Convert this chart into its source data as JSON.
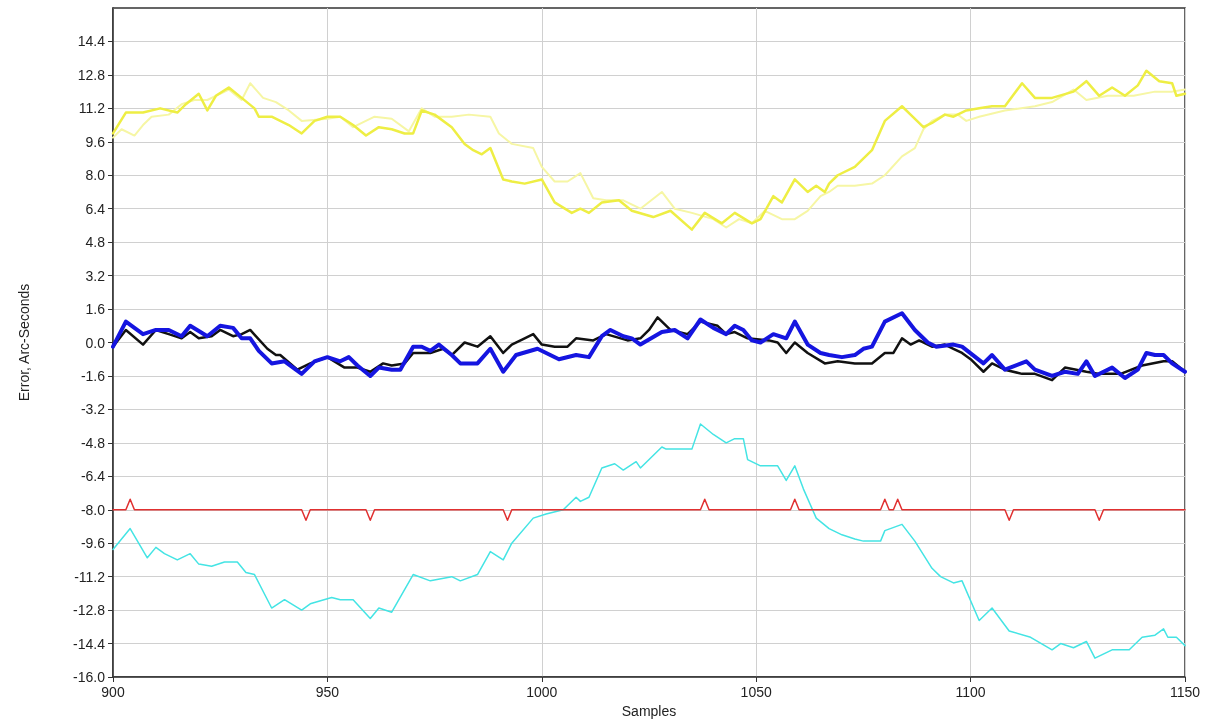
{
  "chart_data": {
    "type": "line",
    "xlabel": "Samples",
    "ylabel": "Error, Arc-Seconds",
    "xlim": [
      900,
      1150
    ],
    "xticks": [
      900,
      950,
      1000,
      1050,
      1100,
      1150
    ],
    "ylim": [
      -16,
      16
    ],
    "yticks": [
      {
        "value": -16,
        "label": "-16.0"
      },
      -14.4,
      -12.8,
      -11.2,
      -9.6,
      {
        "value": -8,
        "label": "-8.0"
      },
      -6.4,
      -4.8,
      -3.2,
      -1.6,
      {
        "value": 0,
        "label": "0.0"
      },
      1.6,
      3.2,
      4.8,
      6.4,
      {
        "value": 8,
        "label": "8.0"
      },
      9.6,
      11.2,
      12.8,
      14.4
    ],
    "grid": true,
    "marker": "none",
    "line_style": "solid",
    "series": [
      {
        "color": "#f6f6a4",
        "x": [
          900,
          902,
          905,
          907,
          909,
          913,
          916,
          919,
          922,
          927,
          930,
          932,
          935,
          938,
          941,
          944,
          950,
          953,
          956,
          961,
          965,
          969,
          972,
          975,
          979,
          983,
          988,
          990,
          993,
          998,
          1000,
          1003,
          1006,
          1009,
          1012,
          1015,
          1019,
          1023,
          1028,
          1031,
          1035,
          1040,
          1043,
          1046,
          1049,
          1052,
          1056,
          1059,
          1062,
          1065,
          1067,
          1069,
          1073,
          1077,
          1080,
          1084,
          1087,
          1089,
          1091,
          1094,
          1097,
          1099,
          1102,
          1108,
          1115,
          1119,
          1124,
          1127,
          1132,
          1138,
          1143,
          1147,
          1150
        ],
        "values": [
          9.8,
          10.2,
          9.9,
          10.4,
          10.8,
          10.9,
          11.4,
          11.6,
          11.6,
          12.1,
          11.6,
          12.4,
          11.7,
          11.5,
          11.1,
          10.6,
          10.7,
          10.8,
          10.3,
          10.8,
          10.7,
          10.1,
          11.2,
          10.8,
          10.8,
          10.9,
          10.8,
          10.0,
          9.5,
          9.3,
          8.4,
          7.7,
          7.7,
          8.1,
          6.9,
          6.8,
          6.8,
          6.4,
          7.2,
          6.4,
          6.2,
          5.9,
          5.5,
          5.9,
          5.7,
          6.3,
          5.9,
          5.9,
          6.3,
          7.0,
          7.2,
          7.5,
          7.5,
          7.6,
          8.0,
          8.9,
          9.3,
          10.2,
          10.6,
          10.9,
          10.9,
          10.6,
          10.8,
          11.1,
          11.3,
          11.5,
          12.1,
          11.6,
          11.8,
          11.8,
          12.0,
          12.0,
          12.1
        ]
      },
      {
        "color": "#eeee44",
        "x": [
          900,
          903,
          907,
          911,
          915,
          917,
          920,
          922,
          924,
          927,
          930,
          933,
          934,
          937,
          941,
          944,
          947,
          950,
          953,
          956,
          959,
          962,
          965,
          968,
          970,
          972,
          975,
          979,
          982,
          984,
          986,
          988,
          991,
          993,
          996,
          1000,
          1003,
          1007,
          1009,
          1011,
          1014,
          1018,
          1021,
          1026,
          1030,
          1035,
          1038,
          1042,
          1045,
          1049,
          1051,
          1054,
          1056,
          1059,
          1062,
          1064,
          1066,
          1067,
          1069,
          1073,
          1077,
          1080,
          1084,
          1086,
          1089,
          1091,
          1094,
          1096,
          1099,
          1102,
          1105,
          1108,
          1112,
          1115,
          1119,
          1124,
          1127,
          1130,
          1133,
          1136,
          1139,
          1141,
          1144,
          1147,
          1148,
          1150
        ],
        "values": [
          10.0,
          11.0,
          11.0,
          11.2,
          11.0,
          11.4,
          11.9,
          11.1,
          11.8,
          12.2,
          11.7,
          11.2,
          10.8,
          10.8,
          10.4,
          10.0,
          10.6,
          10.8,
          10.8,
          10.4,
          9.9,
          10.3,
          10.2,
          10.0,
          10.0,
          11.1,
          10.9,
          10.3,
          9.5,
          9.2,
          9.0,
          9.3,
          7.8,
          7.7,
          7.6,
          7.8,
          6.7,
          6.2,
          6.4,
          6.2,
          6.7,
          6.8,
          6.3,
          6.0,
          6.3,
          5.4,
          6.2,
          5.7,
          6.2,
          5.7,
          5.9,
          7.0,
          6.7,
          7.8,
          7.2,
          7.5,
          7.2,
          7.6,
          8.0,
          8.4,
          9.2,
          10.6,
          11.3,
          10.9,
          10.3,
          10.5,
          10.9,
          10.8,
          11.1,
          11.2,
          11.3,
          11.3,
          12.4,
          11.7,
          11.7,
          12.0,
          12.5,
          11.8,
          12.2,
          11.8,
          12.3,
          13.0,
          12.5,
          12.4,
          11.8,
          11.9
        ]
      },
      {
        "color": "#44e4e4",
        "x": [
          900,
          904,
          908,
          910,
          912,
          915,
          918,
          920,
          923,
          926,
          929,
          931,
          933,
          937,
          940,
          944,
          946,
          951,
          953,
          956,
          960,
          962,
          965,
          970,
          974,
          979,
          981,
          985,
          988,
          991,
          993,
          998,
          1001,
          1005,
          1008,
          1009,
          1011,
          1014,
          1017,
          1019,
          1022,
          1023,
          1028,
          1029,
          1032,
          1035,
          1037,
          1040,
          1043,
          1045,
          1047,
          1048,
          1051,
          1055,
          1057,
          1059,
          1061,
          1064,
          1067,
          1070,
          1073,
          1075,
          1079,
          1080,
          1084,
          1087,
          1091,
          1093,
          1096,
          1098,
          1102,
          1105,
          1109,
          1114,
          1119,
          1121,
          1124,
          1127,
          1129,
          1133,
          1137,
          1140,
          1143,
          1145,
          1146,
          1148,
          1150
        ],
        "values": [
          -9.9,
          -8.9,
          -10.3,
          -9.8,
          -10.1,
          -10.4,
          -10.1,
          -10.6,
          -10.7,
          -10.5,
          -10.5,
          -11.0,
          -11.1,
          -12.7,
          -12.3,
          -12.8,
          -12.5,
          -12.2,
          -12.3,
          -12.3,
          -13.2,
          -12.7,
          -12.9,
          -11.1,
          -11.4,
          -11.2,
          -11.4,
          -11.1,
          -10.0,
          -10.4,
          -9.6,
          -8.4,
          -8.2,
          -8.0,
          -7.4,
          -7.6,
          -7.4,
          -6.0,
          -5.8,
          -6.1,
          -5.7,
          -6.0,
          -5.0,
          -5.1,
          -5.1,
          -5.1,
          -3.9,
          -4.4,
          -4.8,
          -4.6,
          -4.6,
          -5.6,
          -5.9,
          -5.9,
          -6.6,
          -5.9,
          -7.0,
          -8.4,
          -8.9,
          -9.2,
          -9.4,
          -9.5,
          -9.5,
          -9.0,
          -8.7,
          -9.5,
          -10.8,
          -11.2,
          -11.5,
          -11.4,
          -13.3,
          -12.7,
          -13.8,
          -14.1,
          -14.7,
          -14.4,
          -14.6,
          -14.3,
          -15.1,
          -14.7,
          -14.7,
          -14.1,
          -14.0,
          -13.7,
          -14.1,
          -14.1,
          -14.5
        ]
      },
      {
        "color": "#e03030",
        "x": [
          900,
          903,
          904,
          905,
          944,
          945,
          946,
          959,
          960,
          961,
          991,
          992,
          993,
          1037,
          1038,
          1039,
          1058,
          1059,
          1060,
          1079,
          1080,
          1081,
          1082,
          1083,
          1084,
          1085,
          1108,
          1109,
          1110,
          1129,
          1130,
          1131,
          1150
        ],
        "values": [
          -8.0,
          -8.0,
          -7.5,
          -8.0,
          -8.0,
          -8.5,
          -8.0,
          -8.0,
          -8.5,
          -8.0,
          -8.0,
          -8.5,
          -8.0,
          -8.0,
          -7.5,
          -8.0,
          -8.0,
          -7.5,
          -8.0,
          -8.0,
          -7.5,
          -8.0,
          -8.0,
          -7.5,
          -8.0,
          -8.0,
          -8.0,
          -8.5,
          -8.0,
          -8.0,
          -8.5,
          -8.0,
          -8.0
        ]
      },
      {
        "color": "#111111",
        "x": [
          900,
          903,
          907,
          910,
          913,
          916,
          918,
          920,
          923,
          925,
          928,
          930,
          932,
          936,
          938,
          939,
          943,
          946,
          950,
          954,
          957,
          960,
          963,
          965,
          968,
          970,
          974,
          977,
          979,
          982,
          985,
          988,
          991,
          993,
          996,
          998,
          1000,
          1003,
          1006,
          1008,
          1012,
          1015,
          1020,
          1023,
          1025,
          1027,
          1030,
          1034,
          1037,
          1039,
          1041,
          1043,
          1045,
          1048,
          1053,
          1055,
          1057,
          1059,
          1062,
          1066,
          1069,
          1073,
          1077,
          1080,
          1082,
          1084,
          1086,
          1088,
          1091,
          1094,
          1096,
          1098,
          1100,
          1103,
          1105,
          1108,
          1112,
          1115,
          1119,
          1122,
          1127,
          1130,
          1135,
          1140,
          1145,
          1147,
          1150
        ],
        "values": [
          -0.2,
          0.6,
          -0.1,
          0.6,
          0.4,
          0.2,
          0.5,
          0.2,
          0.3,
          0.6,
          0.3,
          0.4,
          0.6,
          -0.3,
          -0.6,
          -0.6,
          -1.3,
          -1.0,
          -0.7,
          -1.2,
          -1.2,
          -1.4,
          -1.0,
          -1.1,
          -1.0,
          -0.5,
          -0.5,
          -0.3,
          -0.6,
          0.0,
          -0.2,
          0.3,
          -0.5,
          -0.1,
          0.2,
          0.4,
          -0.1,
          -0.2,
          -0.2,
          0.2,
          0.1,
          0.4,
          0.1,
          0.2,
          0.6,
          1.2,
          0.6,
          0.4,
          1.0,
          0.9,
          0.8,
          0.4,
          0.5,
          0.2,
          0.1,
          0.0,
          -0.5,
          0.0,
          -0.5,
          -1.0,
          -0.9,
          -1.0,
          -1.0,
          -0.5,
          -0.5,
          0.2,
          -0.1,
          0.1,
          -0.2,
          -0.1,
          -0.3,
          -0.5,
          -0.8,
          -1.4,
          -1.0,
          -1.3,
          -1.5,
          -1.5,
          -1.8,
          -1.2,
          -1.4,
          -1.5,
          -1.5,
          -1.1,
          -0.9,
          -0.9,
          -1.4
        ]
      },
      {
        "color": "#1515e0",
        "x": [
          900,
          903,
          907,
          910,
          913,
          916,
          918,
          922,
          925,
          928,
          930,
          932,
          934,
          937,
          940,
          944,
          947,
          950,
          953,
          955,
          957,
          960,
          962,
          965,
          967,
          970,
          972,
          974,
          976,
          979,
          981,
          985,
          988,
          991,
          994,
          999,
          1004,
          1008,
          1011,
          1014,
          1016,
          1019,
          1021,
          1023,
          1028,
          1031,
          1034,
          1037,
          1040,
          1043,
          1045,
          1047,
          1049,
          1051,
          1054,
          1057,
          1059,
          1062,
          1065,
          1067,
          1070,
          1073,
          1075,
          1077,
          1080,
          1084,
          1087,
          1090,
          1092,
          1096,
          1098,
          1103,
          1105,
          1108,
          1113,
          1115,
          1119,
          1122,
          1125,
          1127,
          1129,
          1133,
          1136,
          1139,
          1141,
          1143,
          1145,
          1147,
          1150
        ],
        "values": [
          -0.2,
          1.0,
          0.4,
          0.6,
          0.6,
          0.3,
          0.8,
          0.3,
          0.8,
          0.7,
          0.2,
          0.2,
          -0.4,
          -1.0,
          -0.9,
          -1.5,
          -0.9,
          -0.7,
          -0.9,
          -0.7,
          -1.1,
          -1.6,
          -1.2,
          -1.3,
          -1.3,
          -0.2,
          -0.2,
          -0.4,
          -0.1,
          -0.6,
          -1.0,
          -1.0,
          -0.3,
          -1.4,
          -0.6,
          -0.3,
          -0.8,
          -0.6,
          -0.7,
          0.3,
          0.6,
          0.3,
          0.2,
          -0.1,
          0.5,
          0.6,
          0.2,
          1.1,
          0.7,
          0.4,
          0.8,
          0.6,
          0.1,
          0.0,
          0.4,
          0.2,
          1.0,
          -0.1,
          -0.5,
          -0.6,
          -0.7,
          -0.6,
          -0.3,
          -0.2,
          1.0,
          1.4,
          0.6,
          0.0,
          -0.2,
          -0.1,
          -0.2,
          -1.0,
          -0.6,
          -1.3,
          -0.9,
          -1.3,
          -1.6,
          -1.4,
          -1.5,
          -0.9,
          -1.6,
          -1.2,
          -1.7,
          -1.3,
          -0.5,
          -0.6,
          -0.6,
          -1.0,
          -1.4
        ]
      }
    ]
  }
}
